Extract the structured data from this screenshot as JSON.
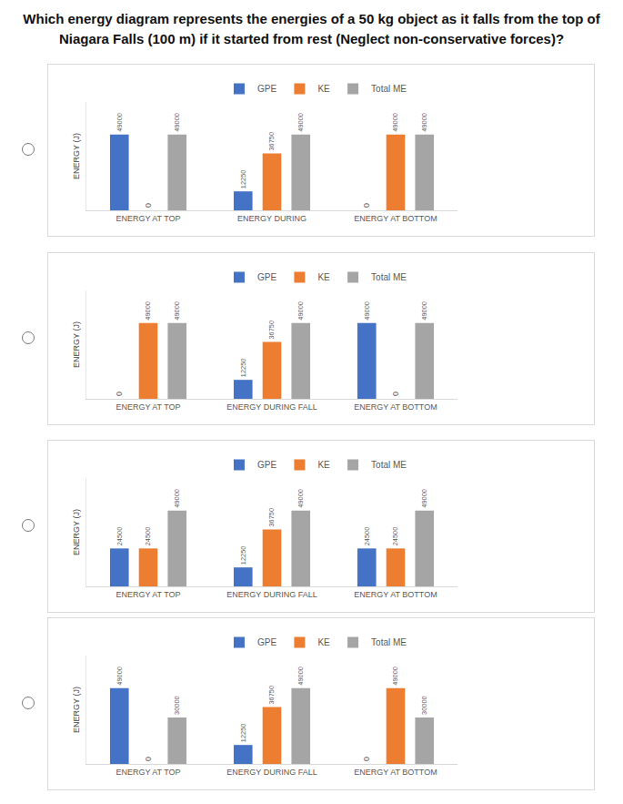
{
  "question": "Which energy diagram represents the energies of a 50 kg object as it falls from the top of Niagara Falls (100 m) if it started from rest (Neglect non-conservative forces)?",
  "chart_data": [
    {
      "type": "bar",
      "y_label": "ENERGY (J)",
      "categories": [
        "ENERGY AT TOP",
        "ENERGY DURING",
        "ENERGY AT BOTTOM"
      ],
      "series": [
        {
          "name": "GPE",
          "color": "#4472c4",
          "values": [
            49000,
            12250,
            0
          ]
        },
        {
          "name": "KE",
          "color": "#ed7d31",
          "values": [
            0,
            36750,
            49000
          ]
        },
        {
          "name": "Total ME",
          "color": "#a5a5a5",
          "values": [
            49000,
            49000,
            49000
          ]
        }
      ],
      "ylim": [
        0,
        70000
      ],
      "tick_labels": "x",
      "grid": false,
      "legend": "top",
      "data_labels": true
    },
    {
      "type": "bar",
      "y_label": "ENERGY (J)",
      "categories": [
        "ENERGY AT TOP",
        "ENERGY DURING FALL",
        "ENERGY AT BOTTOM"
      ],
      "series": [
        {
          "name": "GPE",
          "color": "#4472c4",
          "values": [
            0,
            12250,
            49000
          ]
        },
        {
          "name": "KE",
          "color": "#ed7d31",
          "values": [
            49000,
            36750,
            0
          ]
        },
        {
          "name": "Total ME",
          "color": "#a5a5a5",
          "values": [
            49000,
            49000,
            49000
          ]
        }
      ],
      "ylim": [
        0,
        70000
      ],
      "tick_labels": "x",
      "grid": false,
      "legend": "top",
      "data_labels": true
    },
    {
      "type": "bar",
      "y_label": "ENERGY (J)",
      "categories": [
        "ENERGY AT TOP",
        "ENERGY DURING FALL",
        "ENERGY AT BOTTOM"
      ],
      "series": [
        {
          "name": "GPE",
          "color": "#4472c4",
          "values": [
            24500,
            12250,
            24500
          ]
        },
        {
          "name": "KE",
          "color": "#ed7d31",
          "values": [
            24500,
            36750,
            24500
          ]
        },
        {
          "name": "Total ME",
          "color": "#a5a5a5",
          "values": [
            49000,
            49000,
            49000
          ]
        }
      ],
      "ylim": [
        0,
        70000
      ],
      "tick_labels": "x",
      "grid": false,
      "legend": "top",
      "data_labels": true
    },
    {
      "type": "bar",
      "y_label": "ENERGY (J)",
      "categories": [
        "ENERGY AT TOP",
        "ENERGY DURING FALL",
        "ENERGY AT BOTTOM"
      ],
      "series": [
        {
          "name": "GPE",
          "color": "#4472c4",
          "values": [
            49000,
            12250,
            0
          ]
        },
        {
          "name": "KE",
          "color": "#ed7d31",
          "values": [
            0,
            36750,
            49000
          ]
        },
        {
          "name": "Total ME",
          "color": "#a5a5a5",
          "values": [
            30000,
            49000,
            30000
          ]
        }
      ],
      "ylim": [
        0,
        70000
      ],
      "tick_labels": "x",
      "grid": false,
      "legend": "top",
      "data_labels": true
    }
  ]
}
